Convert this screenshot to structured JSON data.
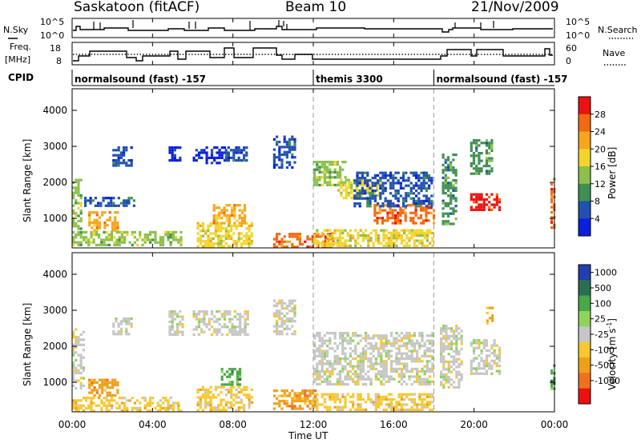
{
  "header": {
    "station": "Saskatoon  (fitACF)",
    "beam": "Beam 10",
    "date": "21/Nov/2009"
  },
  "labels": {
    "n_sky": "N.Sky",
    "freq": "Freq.",
    "freq_unit": "[MHz]",
    "cpid": "CPID",
    "n_search": "N.Search",
    "nave": "Nave",
    "power_axis": "Power [dB]",
    "velocity_axis_main": "Velocity  [m s",
    "velocity_axis_sup": "-1",
    "velocity_axis_end": "]",
    "slant_range": "Slant Range [km]",
    "time_ut": "Time UT"
  },
  "noise_panel": {
    "left_ticks": [
      "10^5",
      "10^0"
    ],
    "right_ticks": [
      "10^5",
      "10^0"
    ]
  },
  "freq_panel": {
    "left_ticks": [
      18,
      8
    ],
    "right_ticks": [
      60,
      0
    ]
  },
  "cpid_segments": [
    {
      "label": "normalsound (fast) -157",
      "start_h": 0.0
    },
    {
      "label": "themis 3300",
      "start_h": 12.0
    },
    {
      "label": "normalsound (fast) -157",
      "start_h": 18.0
    }
  ],
  "time_axis": {
    "range_h": [
      0,
      24
    ],
    "ticks": [
      "00:00",
      "04:00",
      "08:00",
      "12:00",
      "16:00",
      "20:00",
      "00:00"
    ],
    "dashed_markers_h": [
      12.0,
      18.0
    ]
  },
  "range_axis": {
    "range_km": [
      180,
      4600
    ],
    "ticks": [
      1000,
      2000,
      3000,
      4000
    ]
  },
  "power_scale": {
    "labels": [
      "28",
      "24",
      "20",
      "16",
      "12",
      "8",
      "4"
    ],
    "colors": [
      "#ee1111",
      "#f46a10",
      "#f7a51d",
      "#f2d52a",
      "#8cc04a",
      "#3f8f52",
      "#2050b0",
      "#0a1fe0"
    ]
  },
  "velocity_scale": {
    "labels": [
      "1000",
      "500",
      "100",
      "25",
      "-25",
      "-100",
      "-500",
      "-1000"
    ],
    "colors": [
      "#2040b0",
      "#2a7050",
      "#4aa848",
      "#8fd35a",
      "#c6c6c6",
      "#f7c830",
      "#f0a018",
      "#f07020",
      "#ee1010"
    ]
  },
  "chart_data": {
    "type": "heatmap",
    "panels": [
      {
        "name": "Power",
        "units": "dB",
        "scattering_regions": [
          {
            "t0": 0.0,
            "t1": 0.5,
            "r0": 700,
            "r1": 2100,
            "level": 4
          },
          {
            "t0": 0.8,
            "t1": 2.3,
            "r0": 600,
            "r1": 1200,
            "level": 2
          },
          {
            "t0": 0.6,
            "t1": 3.2,
            "r0": 1300,
            "r1": 1600,
            "level": 6
          },
          {
            "t0": 2.0,
            "t1": 3.0,
            "r0": 2400,
            "r1": 3000,
            "level": 6
          },
          {
            "t0": 0.0,
            "t1": 5.5,
            "r0": 200,
            "r1": 650,
            "level": 4
          },
          {
            "t0": 4.8,
            "t1": 5.5,
            "r0": 2600,
            "r1": 3000,
            "level": 7
          },
          {
            "t0": 6.2,
            "t1": 9.0,
            "r0": 200,
            "r1": 900,
            "level": 3
          },
          {
            "t0": 6.0,
            "t1": 7.8,
            "r0": 2500,
            "r1": 3000,
            "level": 7
          },
          {
            "t0": 7.6,
            "t1": 8.8,
            "r0": 2600,
            "r1": 3000,
            "level": 6
          },
          {
            "t0": 7.0,
            "t1": 8.6,
            "r0": 800,
            "r1": 1400,
            "level": 2
          },
          {
            "t0": 10.0,
            "t1": 13.0,
            "r0": 200,
            "r1": 600,
            "level": 1
          },
          {
            "t0": 10.0,
            "t1": 11.2,
            "r0": 2400,
            "r1": 3300,
            "level": 6
          },
          {
            "t0": 12.0,
            "t1": 13.6,
            "r0": 1900,
            "r1": 2600,
            "level": 4
          },
          {
            "t0": 13.2,
            "t1": 15.4,
            "r0": 1500,
            "r1": 2100,
            "level": 3
          },
          {
            "t0": 15.0,
            "t1": 18.0,
            "r0": 800,
            "r1": 1400,
            "level": 1
          },
          {
            "t0": 14.0,
            "t1": 18.0,
            "r0": 1300,
            "r1": 2300,
            "level": 6
          },
          {
            "t0": 12.0,
            "t1": 18.0,
            "r0": 200,
            "r1": 700,
            "level": 3
          },
          {
            "t0": 18.4,
            "t1": 19.2,
            "r0": 800,
            "r1": 2800,
            "level": 5
          },
          {
            "t0": 19.8,
            "t1": 21.3,
            "r0": 1200,
            "r1": 1700,
            "level": 0
          },
          {
            "t0": 19.8,
            "t1": 21.0,
            "r0": 2200,
            "r1": 3200,
            "level": 5
          },
          {
            "t0": 23.8,
            "t1": 24.0,
            "r0": 700,
            "r1": 2200,
            "level": 1
          }
        ]
      },
      {
        "name": "Velocity",
        "units": "m s^-1",
        "scattering_regions": [
          {
            "t0": 0.8,
            "t1": 2.3,
            "r0": 600,
            "r1": 1100,
            "level": 6
          },
          {
            "t0": 0.0,
            "t1": 5.5,
            "r0": 200,
            "r1": 600,
            "level": 5
          },
          {
            "t0": 0.0,
            "t1": 0.6,
            "r0": 800,
            "r1": 2500,
            "level": 4
          },
          {
            "t0": 2.0,
            "t1": 3.0,
            "r0": 2300,
            "r1": 2800,
            "level": 4
          },
          {
            "t0": 4.8,
            "t1": 5.6,
            "r0": 2300,
            "r1": 3000,
            "level": 4
          },
          {
            "t0": 6.0,
            "t1": 8.8,
            "r0": 2300,
            "r1": 3000,
            "level": 4
          },
          {
            "t0": 6.2,
            "t1": 9.0,
            "r0": 200,
            "r1": 900,
            "level": 5
          },
          {
            "t0": 7.4,
            "t1": 8.4,
            "r0": 900,
            "r1": 1400,
            "level": 2
          },
          {
            "t0": 10.0,
            "t1": 12.2,
            "r0": 200,
            "r1": 800,
            "level": 6
          },
          {
            "t0": 10.0,
            "t1": 11.2,
            "r0": 2300,
            "r1": 3300,
            "level": 4
          },
          {
            "t0": 12.0,
            "t1": 18.0,
            "r0": 900,
            "r1": 2400,
            "level": 4
          },
          {
            "t0": 12.0,
            "t1": 18.0,
            "r0": 200,
            "r1": 700,
            "level": 5
          },
          {
            "t0": 18.3,
            "t1": 19.4,
            "r0": 800,
            "r1": 2600,
            "level": 4
          },
          {
            "t0": 19.8,
            "t1": 21.3,
            "r0": 1200,
            "r1": 2200,
            "level": 4
          },
          {
            "t0": 20.6,
            "t1": 21.0,
            "r0": 2600,
            "r1": 3100,
            "level": 6
          },
          {
            "t0": 23.8,
            "t1": 24.0,
            "r0": 800,
            "r1": 1500,
            "level": 2
          }
        ]
      }
    ]
  }
}
